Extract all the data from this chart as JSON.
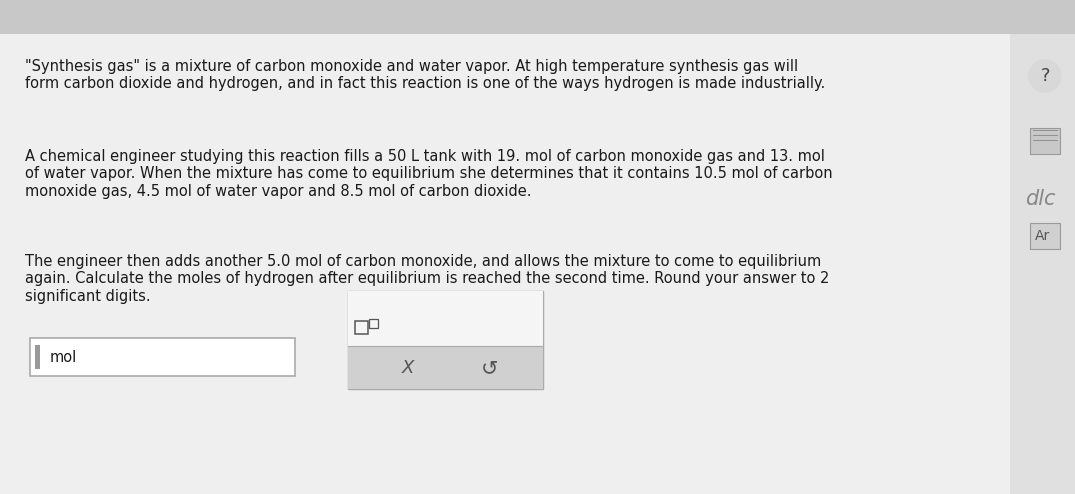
{
  "bg_color": "#e8e8e8",
  "content_bg": "#ebebeb",
  "top_bar_color": "#d0d0d0",
  "paragraph1": "\"Synthesis gas\" is a mixture of carbon monoxide and water vapor. At high temperature synthesis gas will\nform carbon dioxide and hydrogen, and in fact this reaction is one of the ways hydrogen is made industrially.",
  "paragraph2": "A chemical engineer studying this reaction fills a 50 L tank with 19. mol of carbon monoxide gas and 13. mol\nof water vapor. When the mixture has come to equilibrium she determines that it contains 10.5 mol of carbon\nmonoxide gas, 4.5 mol of water vapor and 8.5 mol of carbon dioxide.",
  "paragraph3": "The engineer then adds another 5.0 mol of carbon monoxide, and allows the mixture to come to equilibrium\nagain. Calculate the moles of hydrogen after equilibrium is reached the second time. Round your answer to 2\nsignificant digits.",
  "input_label": "mol",
  "font_size_main": 10.5,
  "text_color": "#1a1a1a",
  "x_symbol": "X",
  "undo_symbol": "↺"
}
